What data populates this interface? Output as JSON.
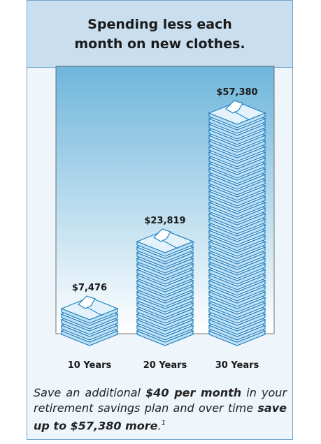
{
  "chart_data": {
    "type": "pictogram",
    "title": "Spending less each month on new clothes.",
    "categories": [
      "10 Years",
      "20 Years",
      "30 Years"
    ],
    "values": [
      7476,
      23819,
      57380
    ],
    "value_labels": [
      "$7,476",
      "$23,819",
      "$57,380"
    ],
    "color": "#1f7fc0"
  },
  "footer": {
    "parts": [
      "Save an additional ",
      "$40 per month",
      " in your retirement savings plan and over time ",
      "save up to $57,380 more",
      ".",
      "1"
    ]
  }
}
